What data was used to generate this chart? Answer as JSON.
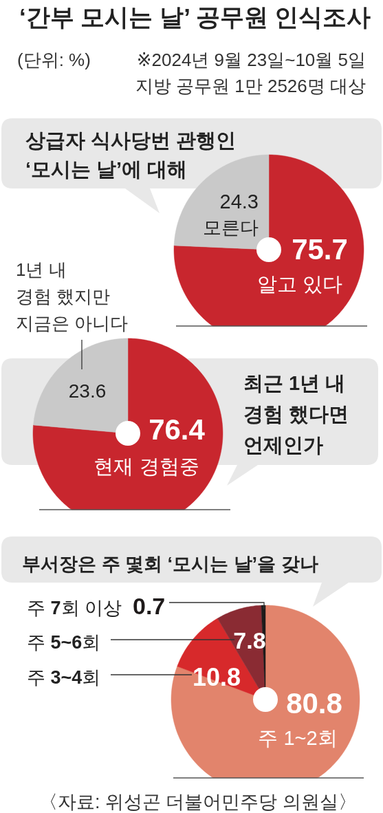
{
  "chart_data": [
    {
      "type": "pie",
      "title": "‘간부 모시는 날’ 공무원 인식조사",
      "subtitle": "상급자 식사당번 관행인\n‘모시는 날’에 대해",
      "categories": [
        "알고 있다",
        "모른다"
      ],
      "values": [
        75.7,
        24.3
      ],
      "colors": [
        "#c8262e",
        "#c9c9c9"
      ],
      "data_labels": true,
      "annotations": [
        "(단위: %)",
        "※2024년 9월 23일~10월 5일\n지방 공무원 1만 2526명 대상"
      ]
    },
    {
      "type": "pie",
      "title": "최근 1년 내\n경험 했다면\n언제인가",
      "categories": [
        "현재 경험중",
        "1년 내\n경험 했지만\n지금은 아니다"
      ],
      "values": [
        76.4,
        23.6
      ],
      "colors": [
        "#c8262e",
        "#c9c9c9"
      ],
      "data_labels": true
    },
    {
      "type": "pie",
      "title": "부서장은 주 몇회 ‘모시는 날’을 갖나",
      "categories": [
        "주 1~2회",
        "주 **3~4**회",
        "주 **5~6**회",
        "주 **7**회 이상"
      ],
      "values": [
        80.8,
        10.8,
        7.8,
        0.7
      ],
      "colors": [
        "#e2846c",
        "#d7292b",
        "#8a2b33",
        "#1e1a1a"
      ],
      "data_labels": true,
      "annotations": [
        "〈자료: 위성곤 더불어민주당 의원실〉"
      ]
    }
  ]
}
